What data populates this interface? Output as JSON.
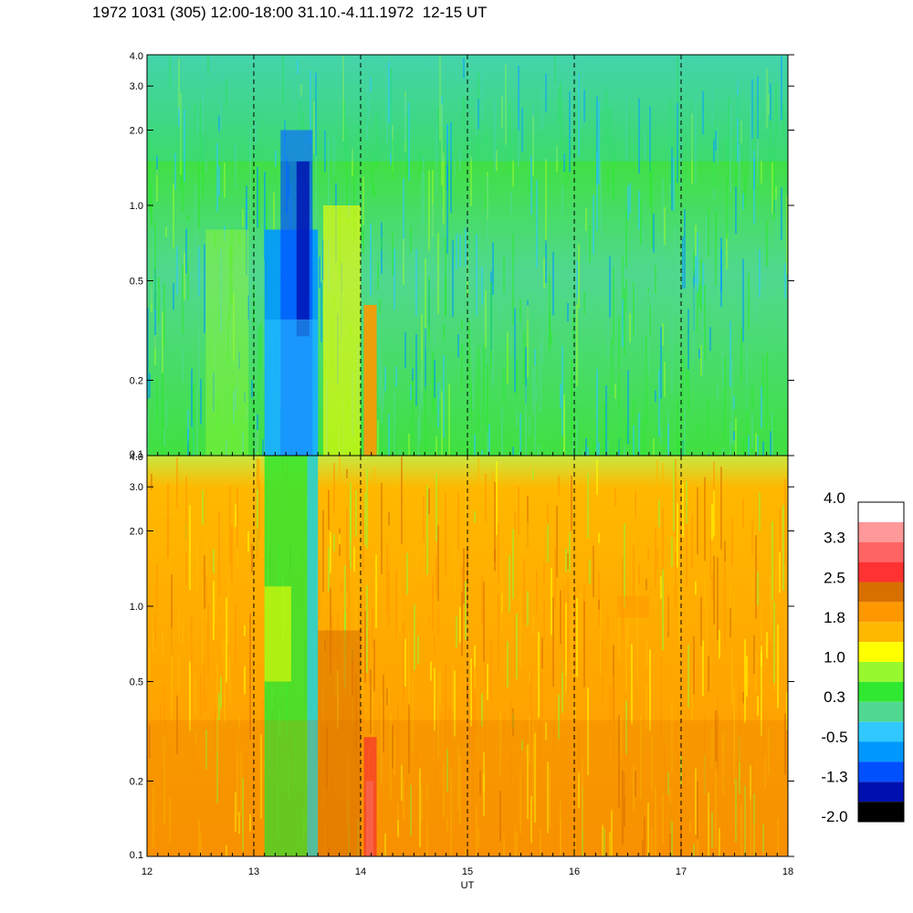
{
  "title": "1972 1031 (305) 12:00-18:00 31.10.-4.11.1972  12-15 UT",
  "chart_data": {
    "type": "heatmap",
    "xlabel": "UT",
    "x_ticks": [
      "12",
      "13",
      "14",
      "15",
      "16",
      "17",
      "18"
    ],
    "xlim": [
      12,
      18
    ],
    "y_scale": "log",
    "ylim": [
      0.1,
      4.0
    ],
    "panels": [
      {
        "name": "upper",
        "y_ticks": [
          "0.1",
          "0.2",
          "0.5",
          "1.0",
          "2.0",
          "3.0",
          "4.0"
        ]
      },
      {
        "name": "lower",
        "y_ticks": [
          "0.1",
          "0.2",
          "0.5",
          "1.0",
          "2.0",
          "3.0",
          "4.0"
        ]
      }
    ],
    "vertical_dashed_lines_at": [
      13,
      14,
      15,
      16,
      17
    ],
    "colorbar": {
      "labels": [
        "4.0",
        "3.3",
        "2.5",
        "1.8",
        "1.0",
        "0.3",
        "-0.5",
        "-1.3",
        "-2.0"
      ],
      "colors": [
        "#ffffff",
        "#ff9898",
        "#ff6464",
        "#ff3232",
        "#d87000",
        "#ff9800",
        "#ffb800",
        "#ffff00",
        "#98f830",
        "#30e830",
        "#50d890",
        "#30c8ff",
        "#0098ff",
        "#0050ff",
        "#0010b0",
        "#000000"
      ]
    }
  }
}
